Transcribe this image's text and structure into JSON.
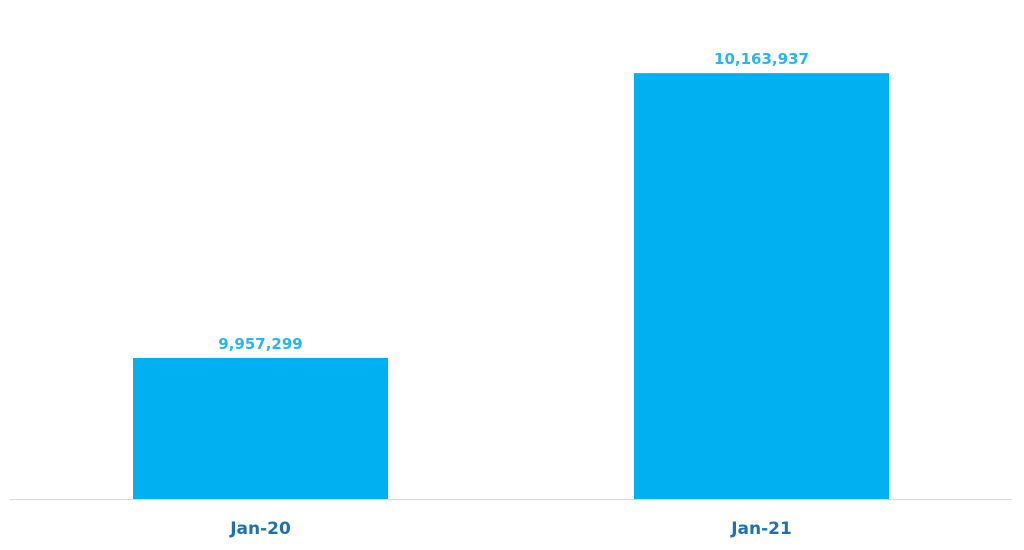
{
  "chart_data": {
    "type": "bar",
    "categories": [
      "Jan-20",
      "Jan-21"
    ],
    "values": [
      9957299,
      10163937
    ],
    "data_labels": [
      "9,957,299",
      "10,163,937"
    ],
    "title": "",
    "xlabel": "",
    "ylabel": "",
    "ylim": [
      9855000,
      10180000
    ],
    "grid": false,
    "legend": "none",
    "colors": {
      "bar": "#00b0f0",
      "data_label": "#29b6f0",
      "tick_label": "#1f6fb5",
      "axis": "#d9d9d9"
    }
  }
}
